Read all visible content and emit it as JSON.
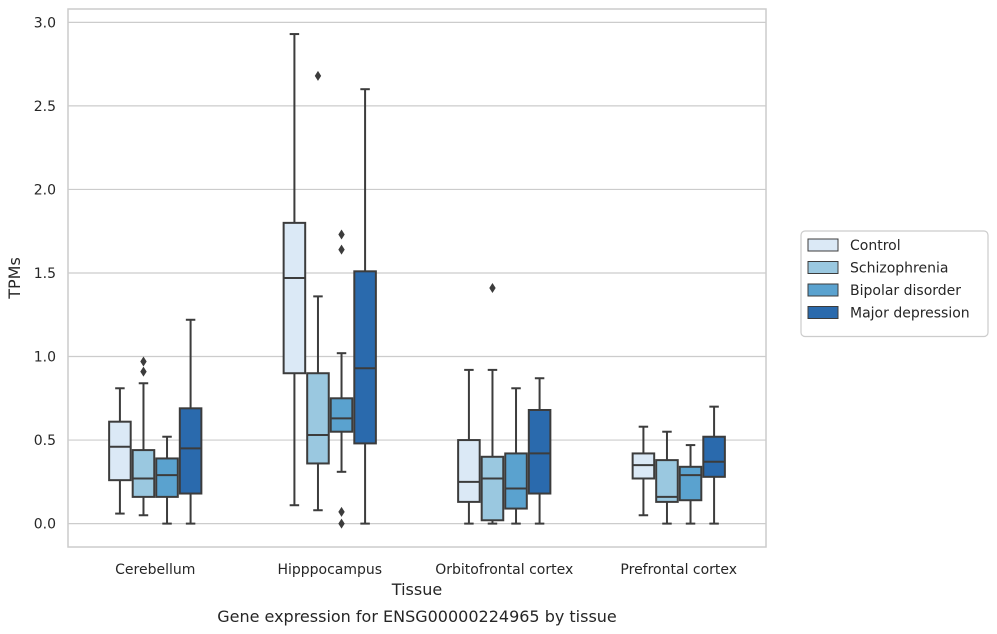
{
  "chart_data": {
    "type": "box",
    "xlabel": "Tissue",
    "ylabel": "TPMs",
    "caption": "Gene expression for ENSG00000224965 by tissue",
    "ylim": [
      -0.14,
      3.08
    ],
    "yticks": [
      "0.0",
      "0.5",
      "1.0",
      "1.5",
      "2.0",
      "2.5",
      "3.0"
    ],
    "grid": true,
    "legend_position": "right",
    "categories": [
      "Cerebellum",
      "Hipppocampus",
      "Orbitofrontal cortex",
      "Prefrontal cortex"
    ],
    "series": [
      {
        "name": "Control",
        "color": "#dbe9f6",
        "boxes": [
          {
            "whisker_low": 0.06,
            "q1": 0.26,
            "median": 0.46,
            "q3": 0.61,
            "whisker_high": 0.81,
            "outliers": []
          },
          {
            "whisker_low": 0.11,
            "q1": 0.9,
            "median": 1.47,
            "q3": 1.8,
            "whisker_high": 2.93,
            "outliers": []
          },
          {
            "whisker_low": 0.0,
            "q1": 0.13,
            "median": 0.25,
            "q3": 0.5,
            "whisker_high": 0.92,
            "outliers": []
          },
          {
            "whisker_low": 0.05,
            "q1": 0.27,
            "median": 0.35,
            "q3": 0.42,
            "whisker_high": 0.58,
            "outliers": []
          }
        ]
      },
      {
        "name": "Schizophrenia",
        "color": "#9ac8e0",
        "boxes": [
          {
            "whisker_low": 0.05,
            "q1": 0.16,
            "median": 0.27,
            "q3": 0.44,
            "whisker_high": 0.84,
            "outliers": [
              0.91,
              0.97
            ]
          },
          {
            "whisker_low": 0.08,
            "q1": 0.36,
            "median": 0.53,
            "q3": 0.9,
            "whisker_high": 1.36,
            "outliers": [
              2.68
            ]
          },
          {
            "whisker_low": 0.0,
            "q1": 0.02,
            "median": 0.27,
            "q3": 0.4,
            "whisker_high": 0.92,
            "outliers": [
              1.41
            ]
          },
          {
            "whisker_low": 0.0,
            "q1": 0.13,
            "median": 0.16,
            "q3": 0.38,
            "whisker_high": 0.55,
            "outliers": []
          }
        ]
      },
      {
        "name": "Bipolar disorder",
        "color": "#5aa2cf",
        "boxes": [
          {
            "whisker_low": 0.0,
            "q1": 0.16,
            "median": 0.29,
            "q3": 0.39,
            "whisker_high": 0.52,
            "outliers": []
          },
          {
            "whisker_low": 0.31,
            "q1": 0.55,
            "median": 0.63,
            "q3": 0.75,
            "whisker_high": 1.02,
            "outliers": [
              1.64,
              1.73,
              0.07,
              0.0
            ]
          },
          {
            "whisker_low": 0.0,
            "q1": 0.09,
            "median": 0.21,
            "q3": 0.42,
            "whisker_high": 0.81,
            "outliers": []
          },
          {
            "whisker_low": 0.0,
            "q1": 0.14,
            "median": 0.29,
            "q3": 0.34,
            "whisker_high": 0.47,
            "outliers": []
          }
        ]
      },
      {
        "name": "Major depression",
        "color": "#2a6aad",
        "boxes": [
          {
            "whisker_low": 0.0,
            "q1": 0.18,
            "median": 0.45,
            "q3": 0.69,
            "whisker_high": 1.22,
            "outliers": []
          },
          {
            "whisker_low": 0.0,
            "q1": 0.48,
            "median": 0.93,
            "q3": 1.51,
            "whisker_high": 2.6,
            "outliers": []
          },
          {
            "whisker_low": 0.0,
            "q1": 0.18,
            "median": 0.42,
            "q3": 0.68,
            "whisker_high": 0.87,
            "outliers": []
          },
          {
            "whisker_low": 0.0,
            "q1": 0.28,
            "median": 0.37,
            "q3": 0.52,
            "whisker_high": 0.7,
            "outliers": []
          }
        ]
      }
    ]
  }
}
